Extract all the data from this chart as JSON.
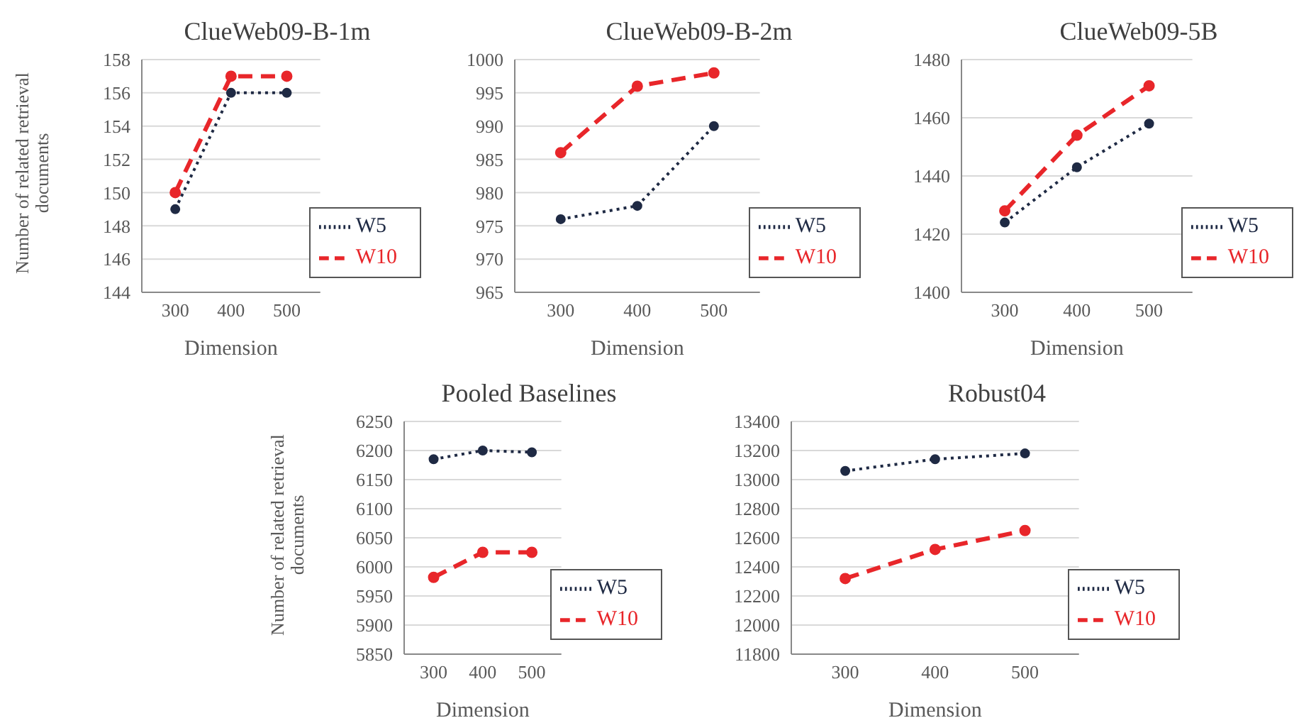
{
  "chart_data": [
    {
      "type": "line",
      "title": "ClueWeb09-B-1m",
      "xlabel": "Dimension",
      "ylabel": "Number of related retrieval documents",
      "categories": [
        "300",
        "400",
        "500"
      ],
      "ylim": [
        144,
        158
      ],
      "yticks": [
        144,
        146,
        148,
        150,
        152,
        154,
        156,
        158
      ],
      "grid": "y",
      "legend": "bottom right",
      "marker": "circle",
      "series": [
        {
          "name": "W5",
          "color": "#1f2a44",
          "line_style": "dotted",
          "values": [
            149,
            156,
            156
          ]
        },
        {
          "name": "W10",
          "color": "#e8262a",
          "line_style": "dashed",
          "values": [
            150,
            157,
            157
          ]
        }
      ]
    },
    {
      "type": "line",
      "title": "ClueWeb09-B-2m",
      "xlabel": "Dimension",
      "categories": [
        "300",
        "400",
        "500"
      ],
      "ylim": [
        965,
        1000
      ],
      "yticks": [
        965,
        970,
        975,
        980,
        985,
        990,
        995,
        1000
      ],
      "grid": "y",
      "legend": "bottom right",
      "marker": "circle",
      "series": [
        {
          "name": "W5",
          "color": "#1f2a44",
          "line_style": "dotted",
          "values": [
            976,
            978,
            990
          ]
        },
        {
          "name": "W10",
          "color": "#e8262a",
          "line_style": "dashed",
          "values": [
            986,
            996,
            998
          ]
        }
      ]
    },
    {
      "type": "line",
      "title": "ClueWeb09-5B",
      "xlabel": "Dimension",
      "categories": [
        "300",
        "400",
        "500"
      ],
      "ylim": [
        1400,
        1480
      ],
      "yticks": [
        1400,
        1420,
        1440,
        1460,
        1480
      ],
      "grid": "y",
      "legend": "bottom right",
      "marker": "circle",
      "series": [
        {
          "name": "W5",
          "color": "#1f2a44",
          "line_style": "dotted",
          "values": [
            1424,
            1443,
            1458
          ]
        },
        {
          "name": "W10",
          "color": "#e8262a",
          "line_style": "dashed",
          "values": [
            1428,
            1454,
            1471
          ]
        }
      ]
    },
    {
      "type": "line",
      "title": "Pooled Baselines",
      "xlabel": "Dimension",
      "ylabel": "Number of related retrieval documents",
      "categories": [
        "300",
        "400",
        "500"
      ],
      "ylim": [
        5850,
        6250
      ],
      "yticks": [
        5850,
        5900,
        5950,
        6000,
        6050,
        6100,
        6150,
        6200,
        6250
      ],
      "grid": "y",
      "legend": "bottom right",
      "marker": "circle",
      "series": [
        {
          "name": "W5",
          "color": "#1f2a44",
          "line_style": "dotted",
          "values": [
            6185,
            6200,
            6197
          ]
        },
        {
          "name": "W10",
          "color": "#e8262a",
          "line_style": "dashed",
          "values": [
            5982,
            6025,
            6025
          ]
        }
      ]
    },
    {
      "type": "line",
      "title": "Robust04",
      "xlabel": "Dimension",
      "categories": [
        "300",
        "400",
        "500"
      ],
      "ylim": [
        11800,
        13400
      ],
      "yticks": [
        11800,
        12000,
        12200,
        12400,
        12600,
        12800,
        13000,
        13200,
        13400
      ],
      "grid": "y",
      "legend": "bottom right",
      "marker": "circle",
      "series": [
        {
          "name": "W5",
          "color": "#1f2a44",
          "line_style": "dotted",
          "values": [
            13060,
            13140,
            13180
          ]
        },
        {
          "name": "W10",
          "color": "#e8262a",
          "line_style": "dashed",
          "values": [
            12320,
            12520,
            12650
          ]
        }
      ]
    }
  ]
}
